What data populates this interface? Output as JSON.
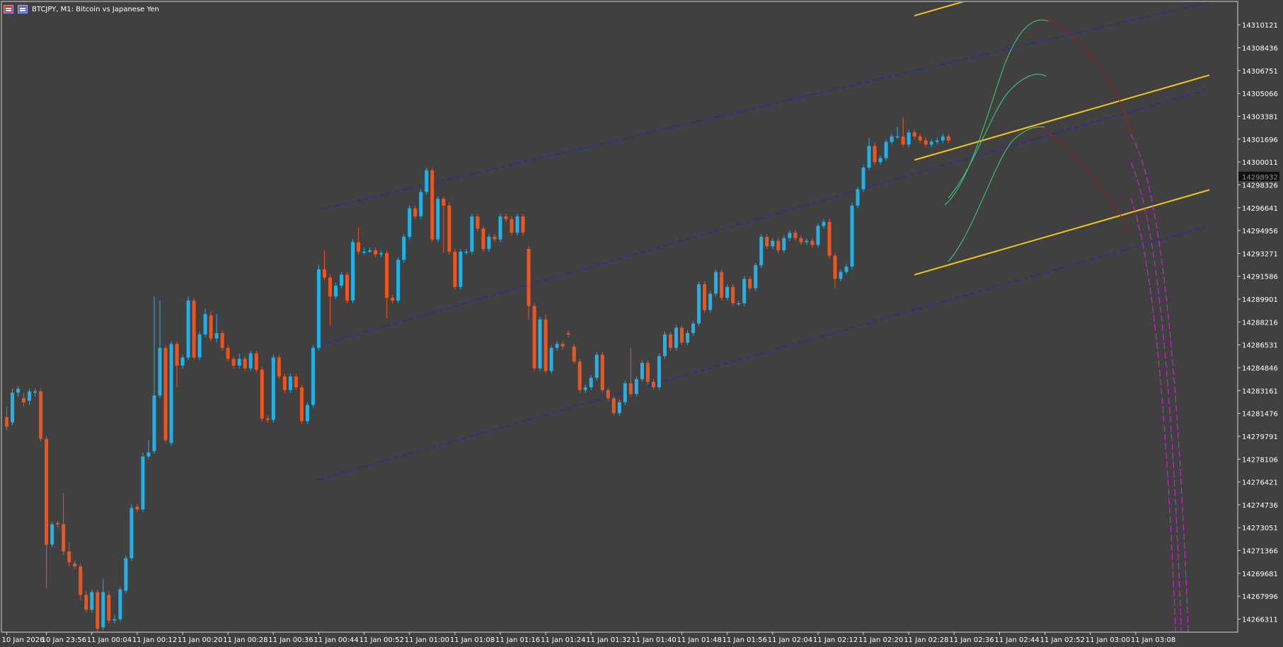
{
  "window": {
    "title": "BTCJPY, M1:  Bitcoin vs Japanese Yen",
    "title_icons": [
      "chart-window-icon",
      "chart-properties-icon"
    ]
  },
  "colors": {
    "background": "#404040",
    "axis": "#d8d8d8",
    "axis_text": "#ffffff",
    "bull_candle": "#1fb1e9",
    "bear_candle": "#f0541c",
    "blue_channel": "#1a22d6",
    "gold_channel": "#f4c41a",
    "green_curve": "#3bd17a",
    "red_curve": "#b01818",
    "magenta_curve": "#e022e6",
    "price_marker_bg": "#111111"
  },
  "chart_data": {
    "type": "candlestick",
    "symbol": "BTCJPY",
    "timeframe": "M1",
    "title": "BTCJPY, M1:  Bitcoin vs Japanese Yen",
    "y_ticks": [
      "14310121",
      "14308436",
      "14306751",
      "14305066",
      "14303381",
      "14301696",
      "14300011",
      "14298326",
      "14296641",
      "14294956",
      "14293271",
      "14291586",
      "14289901",
      "14288216",
      "14286531",
      "14284846",
      "14283161",
      "14281476",
      "14279791",
      "14278106",
      "14276421",
      "14274736",
      "14273051",
      "14271366",
      "14269681",
      "14267996",
      "14266311"
    ],
    "ylim": [
      14265400,
      14311800
    ],
    "current_price": "14298932",
    "x_ticks": [
      {
        "label": "10 Jan 2026",
        "bar": 0
      },
      {
        "label": "10 Jan 23:56",
        "bar": 7
      },
      {
        "label": "11 Jan 00:04",
        "bar": 15
      },
      {
        "label": "11 Jan 00:12",
        "bar": 23
      },
      {
        "label": "11 Jan 00:20",
        "bar": 31
      },
      {
        "label": "11 Jan 00:28",
        "bar": 39
      },
      {
        "label": "11 Jan 00:36",
        "bar": 47
      },
      {
        "label": "11 Jan 00:44",
        "bar": 55
      },
      {
        "label": "11 Jan 00:52",
        "bar": 63
      },
      {
        "label": "11 Jan 01:00",
        "bar": 71
      },
      {
        "label": "11 Jan 01:08",
        "bar": 79
      },
      {
        "label": "11 Jan 01:16",
        "bar": 87
      },
      {
        "label": "11 Jan 01:24",
        "bar": 95
      },
      {
        "label": "11 Jan 01:32",
        "bar": 103
      },
      {
        "label": "11 Jan 01:40",
        "bar": 111
      },
      {
        "label": "11 Jan 01:48",
        "bar": 119
      },
      {
        "label": "11 Jan 01:56",
        "bar": 127
      },
      {
        "label": "11 Jan 02:04",
        "bar": 135
      },
      {
        "label": "11 Jan 02:12",
        "bar": 143
      },
      {
        "label": "11 Jan 02:20",
        "bar": 151
      },
      {
        "label": "11 Jan 02:28",
        "bar": 159
      },
      {
        "label": "11 Jan 02:36",
        "bar": 167
      },
      {
        "label": "11 Jan 02:44",
        "bar": 175
      },
      {
        "label": "11 Jan 02:52",
        "bar": 183
      },
      {
        "label": "11 Jan 03:00",
        "bar": 191
      },
      {
        "label": "11 Jan 03:08",
        "bar": 199
      }
    ],
    "candles": [
      [
        14281200,
        14280500,
        14282000,
        14280200
      ],
      [
        14280800,
        14283000,
        14283300,
        14280600
      ],
      [
        14283000,
        14283300,
        14283500,
        14282700
      ],
      [
        14282600,
        14282300,
        14283000,
        14282000
      ],
      [
        14282400,
        14283100,
        14283300,
        14282100
      ],
      [
        14283000,
        14283100,
        14283300,
        14282700
      ],
      [
        14283100,
        14279600,
        14283300,
        14279400
      ],
      [
        14279600,
        14271800,
        14279800,
        14268600
      ],
      [
        14271800,
        14273300,
        14273500,
        14271600
      ],
      [
        14273400,
        14273300,
        14273600,
        14273000
      ],
      [
        14273300,
        14271300,
        14275600,
        14271000
      ],
      [
        14271300,
        14270500,
        14272000,
        14270200
      ],
      [
        14270400,
        14270200,
        14270600,
        14270000
      ],
      [
        14270200,
        14268100,
        14270400,
        14267700
      ],
      [
        14268100,
        14267000,
        14268400,
        14266800
      ],
      [
        14267000,
        14268300,
        14268500,
        14266800
      ],
      [
        14268300,
        14265600,
        14268500,
        14265400
      ],
      [
        14265700,
        14268300,
        14269300,
        14265500
      ],
      [
        14268100,
        14266200,
        14268400,
        14266000
      ],
      [
        14266200,
        14266300,
        14266600,
        14266000
      ],
      [
        14266300,
        14268500,
        14268700,
        14266100
      ],
      [
        14268400,
        14270800,
        14271000,
        14268200
      ],
      [
        14270800,
        14274500,
        14274800,
        14270600
      ],
      [
        14274600,
        14274400,
        14274800,
        14274200
      ],
      [
        14274400,
        14278300,
        14278600,
        14274200
      ],
      [
        14278300,
        14278600,
        14279500,
        14278100
      ],
      [
        14278700,
        14282800,
        14290100,
        14278500
      ],
      [
        14282800,
        14286300,
        14289800,
        14282600
      ],
      [
        14286300,
        14279500,
        14286500,
        14279300
      ],
      [
        14279300,
        14286600,
        14286800,
        14279100
      ],
      [
        14286600,
        14285000,
        14286800,
        14283400
      ],
      [
        14285000,
        14285600,
        14285800,
        14284800
      ],
      [
        14285600,
        14289800,
        14290100,
        14285400
      ],
      [
        14289800,
        14285600,
        14290000,
        14285400
      ],
      [
        14285600,
        14287300,
        14287500,
        14285400
      ],
      [
        14287300,
        14288800,
        14289200,
        14287100
      ],
      [
        14288700,
        14287000,
        14289000,
        14286800
      ],
      [
        14287000,
        14287400,
        14288800,
        14286700
      ],
      [
        14287400,
        14286300,
        14287600,
        14286100
      ],
      [
        14286300,
        14285500,
        14286500,
        14285300
      ],
      [
        14285500,
        14285000,
        14285700,
        14284800
      ],
      [
        14285000,
        14285500,
        14285900,
        14284800
      ],
      [
        14285500,
        14284800,
        14285700,
        14284600
      ],
      [
        14284800,
        14285900,
        14286100,
        14284600
      ],
      [
        14285900,
        14284700,
        14286100,
        14284500
      ],
      [
        14284700,
        14281100,
        14284900,
        14280900
      ],
      [
        14281100,
        14281000,
        14281300,
        14280800
      ],
      [
        14281000,
        14285600,
        14285800,
        14280800
      ],
      [
        14285600,
        14284200,
        14285800,
        14284000
      ],
      [
        14284200,
        14283200,
        14284400,
        14283000
      ],
      [
        14283200,
        14284200,
        14284400,
        14283000
      ],
      [
        14284200,
        14283400,
        14284400,
        14283200
      ],
      [
        14283400,
        14280900,
        14283600,
        14280700
      ],
      [
        14280900,
        14282100,
        14282300,
        14280700
      ],
      [
        14282100,
        14286300,
        14286500,
        14281900
      ],
      [
        14286300,
        14292100,
        14292400,
        14286100
      ],
      [
        14292100,
        14291500,
        14293500,
        14291300
      ],
      [
        14291500,
        14290100,
        14291700,
        14288000
      ],
      [
        14290100,
        14290900,
        14291100,
        14289900
      ],
      [
        14290900,
        14291700,
        14291900,
        14290700
      ],
      [
        14291700,
        14289800,
        14291900,
        14289600
      ],
      [
        14289800,
        14294100,
        14294300,
        14289600
      ],
      [
        14294100,
        14293400,
        14295200,
        14293200
      ],
      [
        14293400,
        14293400,
        14293700,
        14293200
      ],
      [
        14293400,
        14293500,
        14293700,
        14293300
      ],
      [
        14293500,
        14293200,
        14293700,
        14293000
      ],
      [
        14293200,
        14293300,
        14293500,
        14293000
      ],
      [
        14293300,
        14290000,
        14293500,
        14288500
      ],
      [
        14290000,
        14289800,
        14290200,
        14289600
      ],
      [
        14289800,
        14292800,
        14293000,
        14289600
      ],
      [
        14292800,
        14294500,
        14294700,
        14292600
      ],
      [
        14294500,
        14296600,
        14296800,
        14294300
      ],
      [
        14296600,
        14296000,
        14296800,
        14295800
      ],
      [
        14296000,
        14297800,
        14298000,
        14295800
      ],
      [
        14297800,
        14299400,
        14299600,
        14297600
      ],
      [
        14299400,
        14294300,
        14299600,
        14294100
      ],
      [
        14294300,
        14297300,
        14297500,
        14294100
      ],
      [
        14297300,
        14296800,
        14297500,
        14293300
      ],
      [
        14296800,
        14293400,
        14297000,
        14293200
      ],
      [
        14293400,
        14290800,
        14293600,
        14290600
      ],
      [
        14290800,
        14293400,
        14293600,
        14290600
      ],
      [
        14293400,
        14293400,
        14293600,
        14293200
      ],
      [
        14293400,
        14296000,
        14296200,
        14293200
      ],
      [
        14296000,
        14295100,
        14296200,
        14294900
      ],
      [
        14295100,
        14293600,
        14295300,
        14293400
      ],
      [
        14293600,
        14294500,
        14294700,
        14293400
      ],
      [
        14294500,
        14294300,
        14294700,
        14294100
      ],
      [
        14294300,
        14296000,
        14296200,
        14294100
      ],
      [
        14296000,
        14295800,
        14296200,
        14295600
      ],
      [
        14295800,
        14294800,
        14296000,
        14294600
      ],
      [
        14294800,
        14296000,
        14296200,
        14294600
      ],
      [
        14296000,
        14294800,
        14296200,
        14294600
      ],
      [
        14293600,
        14289400,
        14293800,
        14288400
      ],
      [
        14289400,
        14284800,
        14289600,
        14284600
      ],
      [
        14284800,
        14288400,
        14288600,
        14284600
      ],
      [
        14288400,
        14284600,
        14288800,
        14284400
      ],
      [
        14284600,
        14286300,
        14286500,
        14284400
      ],
      [
        14286300,
        14286600,
        14286800,
        14286100
      ],
      [
        14286600,
        14286400,
        14286800,
        14286200
      ],
      [
        14287400,
        14287300,
        14287600,
        14287100
      ],
      [
        14286400,
        14285300,
        14286600,
        14285100
      ],
      [
        14285300,
        14283200,
        14285500,
        14283000
      ],
      [
        14283200,
        14283400,
        14283600,
        14283000
      ],
      [
        14283400,
        14284100,
        14284300,
        14283200
      ],
      [
        14284100,
        14285800,
        14286000,
        14283900
      ],
      [
        14285800,
        14283200,
        14286000,
        14283000
      ],
      [
        14283200,
        14282600,
        14283400,
        14282400
      ],
      [
        14282600,
        14281500,
        14282800,
        14281300
      ],
      [
        14281500,
        14282300,
        14282500,
        14281300
      ],
      [
        14282300,
        14283700,
        14283900,
        14282100
      ],
      [
        14283700,
        14282900,
        14286300,
        14282700
      ],
      [
        14282900,
        14284000,
        14284200,
        14282700
      ],
      [
        14284000,
        14285200,
        14285400,
        14283800
      ],
      [
        14285200,
        14283800,
        14285400,
        14283600
      ],
      [
        14283800,
        14283400,
        14284000,
        14283200
      ],
      [
        14283400,
        14285700,
        14285900,
        14283200
      ],
      [
        14285700,
        14287300,
        14287500,
        14285500
      ],
      [
        14287300,
        14286300,
        14287500,
        14286100
      ],
      [
        14286300,
        14287800,
        14288000,
        14286100
      ],
      [
        14287800,
        14286700,
        14288000,
        14286500
      ],
      [
        14286700,
        14287400,
        14287600,
        14286500
      ],
      [
        14287400,
        14288100,
        14288300,
        14287200
      ],
      [
        14288100,
        14291000,
        14291200,
        14287900
      ],
      [
        14291000,
        14289100,
        14291200,
        14288900
      ],
      [
        14289100,
        14290300,
        14290500,
        14288900
      ],
      [
        14290300,
        14291900,
        14292100,
        14290100
      ],
      [
        14291900,
        14290000,
        14292100,
        14289800
      ],
      [
        14290000,
        14290800,
        14291000,
        14289800
      ],
      [
        14290800,
        14289600,
        14291000,
        14289400
      ],
      [
        14289600,
        14289600,
        14289800,
        14289400
      ],
      [
        14289600,
        14291400,
        14291600,
        14289400
      ],
      [
        14291400,
        14290700,
        14291600,
        14290500
      ],
      [
        14290700,
        14292400,
        14292600,
        14290500
      ],
      [
        14292400,
        14294500,
        14294700,
        14292200
      ],
      [
        14294500,
        14293800,
        14294700,
        14293600
      ],
      [
        14293800,
        14294200,
        14294400,
        14293600
      ],
      [
        14294200,
        14293500,
        14294400,
        14293300
      ],
      [
        14293500,
        14294400,
        14294600,
        14293300
      ],
      [
        14294400,
        14294800,
        14295000,
        14294200
      ],
      [
        14294800,
        14294400,
        14295000,
        14294200
      ],
      [
        14294400,
        14294100,
        14294600,
        14293900
      ],
      [
        14294100,
        14294200,
        14294400,
        14293900
      ],
      [
        14294200,
        14293900,
        14294400,
        14293700
      ],
      [
        14293900,
        14295300,
        14295500,
        14293700
      ],
      [
        14295300,
        14295600,
        14295800,
        14295100
      ],
      [
        14295600,
        14293100,
        14295800,
        14292900
      ],
      [
        14293100,
        14291400,
        14293300,
        14290700
      ],
      [
        14291400,
        14291900,
        14292100,
        14291200
      ],
      [
        14291900,
        14292300,
        14292500,
        14291700
      ],
      [
        14292300,
        14296800,
        14297000,
        14292100
      ],
      [
        14296800,
        14298000,
        14298200,
        14296600
      ],
      [
        14298000,
        14299600,
        14299800,
        14297800
      ],
      [
        14299600,
        14301200,
        14301800,
        14299400
      ],
      [
        14301200,
        14300000,
        14301400,
        14299800
      ],
      [
        14300000,
        14300300,
        14300500,
        14299800
      ],
      [
        14300300,
        14301500,
        14301700,
        14300100
      ],
      [
        14301500,
        14301900,
        14302100,
        14301300
      ],
      [
        14301900,
        14301900,
        14302600,
        14301700
      ],
      [
        14301900,
        14301300,
        14303300,
        14301100
      ],
      [
        14301300,
        14302200,
        14302400,
        14301100
      ],
      [
        14302200,
        14301900,
        14302400,
        14301700
      ],
      [
        14301900,
        14301600,
        14302100,
        14301400
      ],
      [
        14301600,
        14301300,
        14301800,
        14301100
      ],
      [
        14301300,
        14301500,
        14301700,
        14301100
      ],
      [
        14301500,
        14301600,
        14301800,
        14301300
      ],
      [
        14301600,
        14301900,
        14302100,
        14301400
      ],
      [
        14301900,
        14301600,
        14302100,
        14301400
      ]
    ]
  },
  "channels": {
    "blue_upper": [
      [
        55,
        14296500
      ],
      [
        212,
        14311800
      ]
    ],
    "blue_middle": [
      [
        55,
        14286500
      ],
      [
        212,
        14305400
      ]
    ],
    "blue_lower": [
      [
        55,
        14276600
      ],
      [
        212,
        14295300
      ]
    ]
  }
}
